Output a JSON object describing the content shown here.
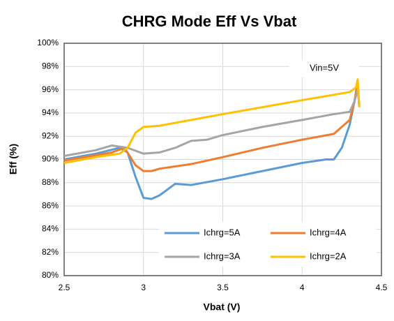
{
  "chart_data": {
    "type": "line",
    "title": "CHRG Mode Eff Vs Vbat",
    "xlabel": "Vbat (V)",
    "ylabel": "Eff (%)",
    "annotation": "Vin=5V",
    "xlim": [
      2.5,
      4.5
    ],
    "xticks": [
      2.5,
      3,
      3.5,
      4,
      4.5
    ],
    "ylim": [
      80,
      100
    ],
    "yticks": [
      {
        "value": 80,
        "label": "80%"
      },
      {
        "value": 82,
        "label": "82%"
      },
      {
        "value": 84,
        "label": "84%"
      },
      {
        "value": 86,
        "label": "86%"
      },
      {
        "value": 88,
        "label": "88%"
      },
      {
        "value": 90,
        "label": "90%"
      },
      {
        "value": 92,
        "label": "92%"
      },
      {
        "value": 94,
        "label": "94%"
      },
      {
        "value": 96,
        "label": "96%"
      },
      {
        "value": 98,
        "label": "98%"
      },
      {
        "value": 100,
        "label": "100%"
      }
    ],
    "grid": true,
    "legend": "lower right",
    "series": [
      {
        "name": "Ichrg=5A",
        "color": "#5b9bd5",
        "x": [
          2.5,
          2.7,
          2.85,
          2.9,
          2.95,
          3.0,
          3.05,
          3.1,
          3.2,
          3.3,
          3.5,
          3.75,
          4.0,
          4.15,
          4.2,
          4.25,
          4.3,
          4.33,
          4.35,
          4.36
        ],
        "values": [
          90.0,
          90.5,
          91.0,
          90.6,
          88.5,
          86.7,
          86.6,
          86.9,
          87.9,
          87.8,
          88.3,
          89.0,
          89.7,
          90.0,
          90.0,
          91.0,
          93.0,
          95.0,
          96.5,
          94.5
        ]
      },
      {
        "name": "Ichrg=4A",
        "color": "#ed7d31",
        "x": [
          2.5,
          2.8,
          2.88,
          2.95,
          3.0,
          3.05,
          3.1,
          3.3,
          3.5,
          3.75,
          4.0,
          4.2,
          4.3,
          4.33,
          4.35,
          4.36
        ],
        "values": [
          89.9,
          90.6,
          91.0,
          89.5,
          89.0,
          89.0,
          89.2,
          89.6,
          90.2,
          91.0,
          91.7,
          92.2,
          93.4,
          95.0,
          96.7,
          94.5
        ]
      },
      {
        "name": "Ichrg=3A",
        "color": "#a5a5a5",
        "x": [
          2.5,
          2.7,
          2.8,
          2.9,
          3.0,
          3.1,
          3.2,
          3.3,
          3.4,
          3.5,
          3.75,
          4.0,
          4.2,
          4.3,
          4.33,
          4.35,
          4.36
        ],
        "values": [
          90.3,
          90.8,
          91.2,
          91.0,
          90.5,
          90.6,
          91.0,
          91.6,
          91.7,
          92.1,
          92.8,
          93.4,
          93.9,
          94.1,
          95.0,
          96.0,
          94.8
        ]
      },
      {
        "name": "Ichrg=2A",
        "color": "#ffc000",
        "x": [
          2.5,
          2.7,
          2.85,
          2.9,
          2.95,
          3.0,
          3.1,
          3.5,
          4.0,
          4.3,
          4.34,
          4.35,
          4.36
        ],
        "values": [
          89.7,
          90.2,
          90.5,
          91.0,
          92.3,
          92.8,
          92.9,
          93.9,
          95.1,
          95.8,
          96.2,
          96.9,
          94.5
        ]
      }
    ]
  }
}
